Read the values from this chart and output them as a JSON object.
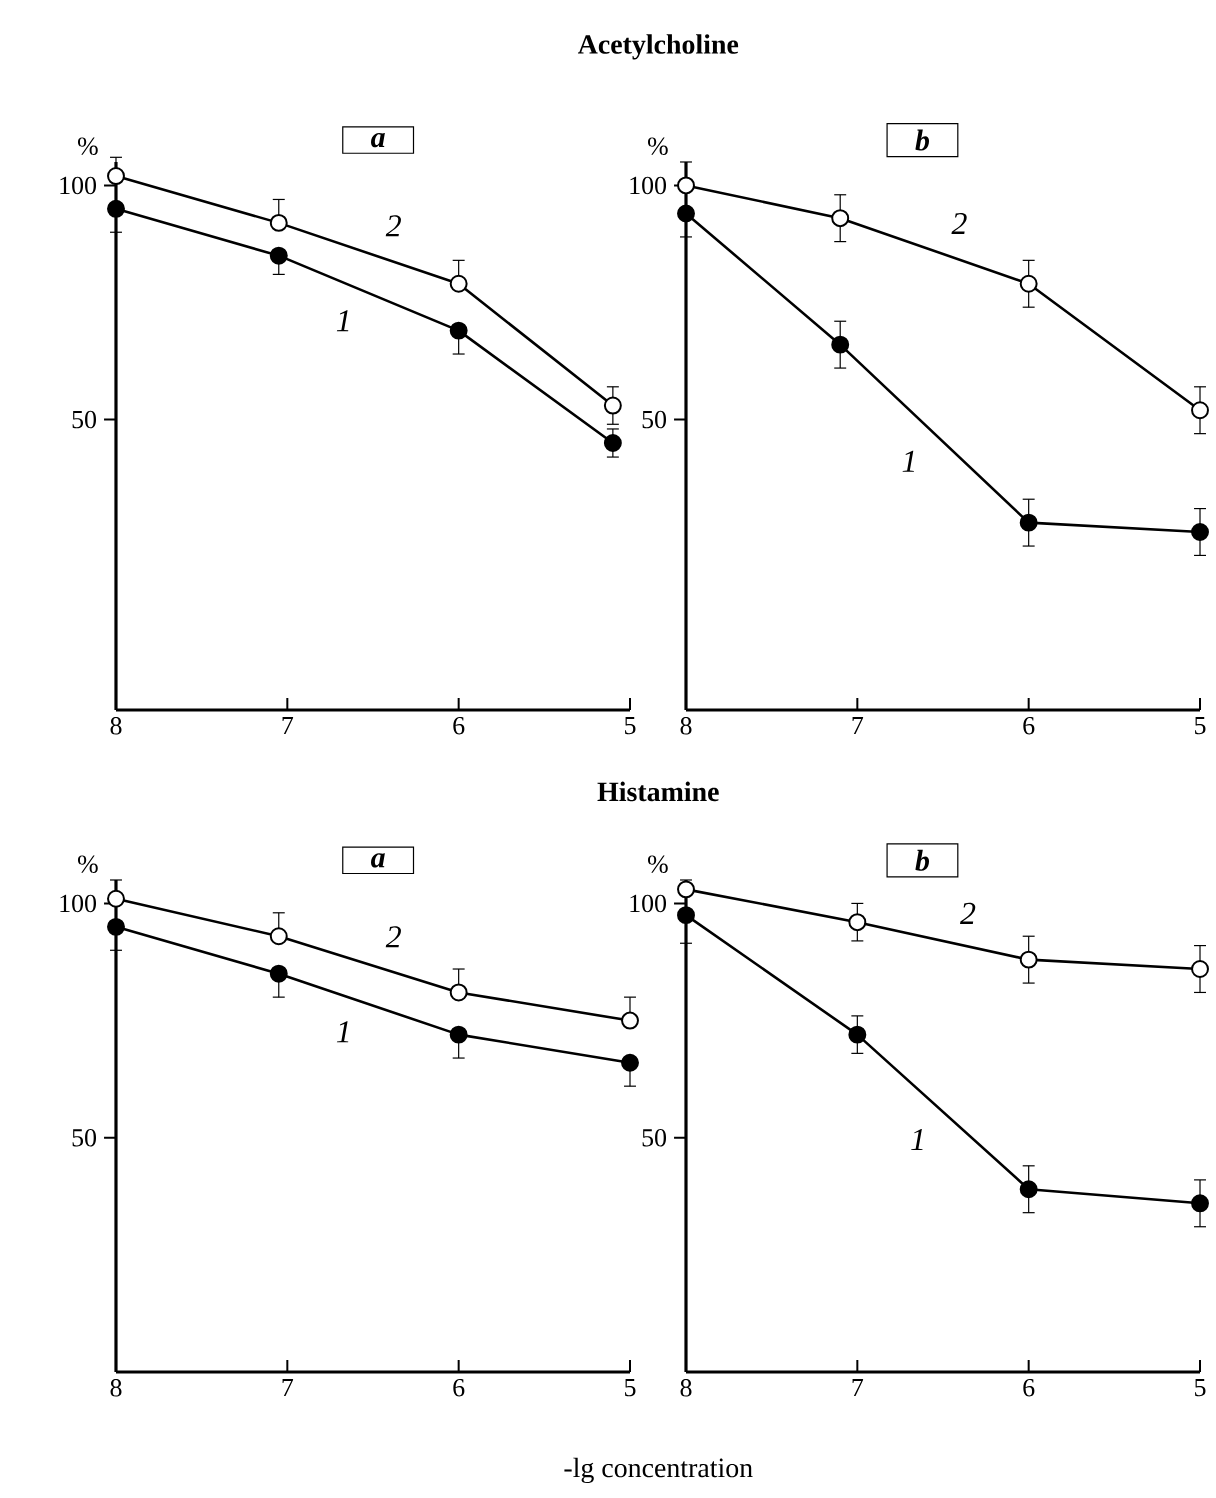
{
  "chart_data": [
    {
      "type": "line",
      "title": "Acetylcholine",
      "subtitle": "a",
      "ylabel": "%",
      "x": [
        8,
        7.05,
        6,
        5.1
      ],
      "xlim": [
        8,
        5
      ],
      "ylim": [
        -12,
        105
      ],
      "xticks": [
        8,
        7,
        6,
        5
      ],
      "yticks": [
        50,
        100
      ],
      "marker": "circle",
      "line_style": "solid",
      "grid": false,
      "series": [
        {
          "name": "1",
          "color": "#000000",
          "values": [
            95,
            85,
            69,
            45
          ],
          "errors": [
            [
              90,
              95
            ],
            [
              81,
              85
            ],
            [
              64,
              69
            ],
            3
          ]
        },
        {
          "name": "2",
          "color": "#ffffff",
          "values": [
            102,
            92,
            79,
            53
          ],
          "errors": [
            [
              102,
              106
            ],
            [
              92,
              97
            ],
            [
              79,
              84
            ],
            4
          ]
        }
      ]
    },
    {
      "type": "line",
      "subtitle": "b",
      "ylabel": "%",
      "x": [
        8,
        7.1,
        6,
        5
      ],
      "xlim": [
        8,
        5
      ],
      "ylim": [
        -12,
        105
      ],
      "xticks": [
        8,
        7,
        6,
        5
      ],
      "yticks": [
        50,
        100
      ],
      "marker": "circle",
      "line_style": "solid",
      "grid": false,
      "series": [
        {
          "name": "1",
          "color": "#000000",
          "values": [
            94,
            66,
            28,
            26
          ],
          "errors": [
            [
              89,
              94
            ],
            5,
            5,
            5
          ]
        },
        {
          "name": "2",
          "color": "#ffffff",
          "values": [
            100,
            93,
            79,
            52
          ],
          "errors": [
            [
              100,
              105
            ],
            5,
            5,
            5
          ]
        }
      ]
    },
    {
      "type": "line",
      "title": "Histamine",
      "subtitle": "a",
      "ylabel": "%",
      "xlabel": "-lg concentration",
      "x": [
        8,
        7.05,
        6,
        5
      ],
      "xlim": [
        8,
        5
      ],
      "ylim": [
        0,
        105
      ],
      "xticks": [
        8,
        7,
        6,
        5
      ],
      "yticks": [
        50,
        100
      ],
      "marker": "circle",
      "line_style": "solid",
      "grid": false,
      "series": [
        {
          "name": "1",
          "color": "#000000",
          "values": [
            95,
            85,
            72,
            66
          ],
          "errors": [
            [
              90,
              95
            ],
            [
              80,
              85
            ],
            [
              67,
              72
            ],
            [
              61,
              66
            ]
          ]
        },
        {
          "name": "2",
          "color": "#ffffff",
          "values": [
            101,
            93,
            81,
            75
          ],
          "errors": [
            [
              101,
              105
            ],
            [
              93,
              98
            ],
            [
              81,
              86
            ],
            [
              75,
              80
            ]
          ]
        }
      ]
    },
    {
      "type": "line",
      "subtitle": "b",
      "ylabel": "%",
      "x": [
        8,
        7,
        6,
        5
      ],
      "xlim": [
        8,
        5
      ],
      "ylim": [
        0,
        105
      ],
      "xticks": [
        8,
        7,
        6,
        5
      ],
      "yticks": [
        50,
        100
      ],
      "marker": "circle",
      "line_style": "solid",
      "grid": false,
      "series": [
        {
          "name": "1",
          "color": "#000000",
          "values": [
            97.5,
            72,
            39,
            36
          ],
          "errors": [
            [
              91.5,
              97.5
            ],
            4,
            5,
            5
          ]
        },
        {
          "name": "2",
          "color": "#ffffff",
          "values": [
            103,
            96,
            88,
            86
          ],
          "errors": [
            [
              103,
              105
            ],
            4,
            5,
            5
          ]
        }
      ]
    }
  ]
}
